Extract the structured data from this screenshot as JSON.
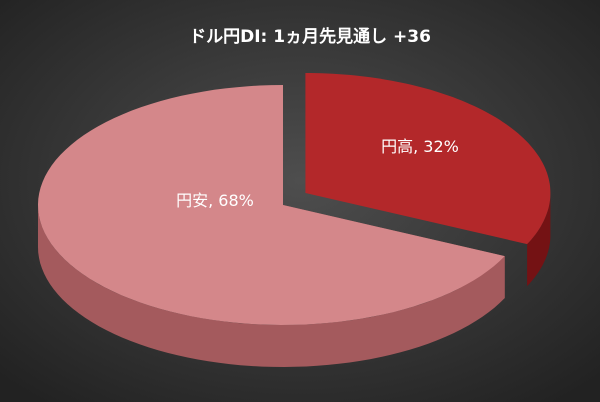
{
  "chart_data": {
    "type": "pie",
    "style": "3d-exploded",
    "title": "ドル円DI: 1ヵ月先見通し +36",
    "slices": [
      {
        "label": "円高",
        "value": 32,
        "display": "円高, 32%",
        "color": "#b3282a",
        "side_color": "#741214",
        "exploded": true
      },
      {
        "label": "円安",
        "value": 68,
        "display": "円安, 68%",
        "color": "#d4878a",
        "side_color": "#a45a5d",
        "exploded": false
      }
    ],
    "background": "#3a3a3a"
  }
}
